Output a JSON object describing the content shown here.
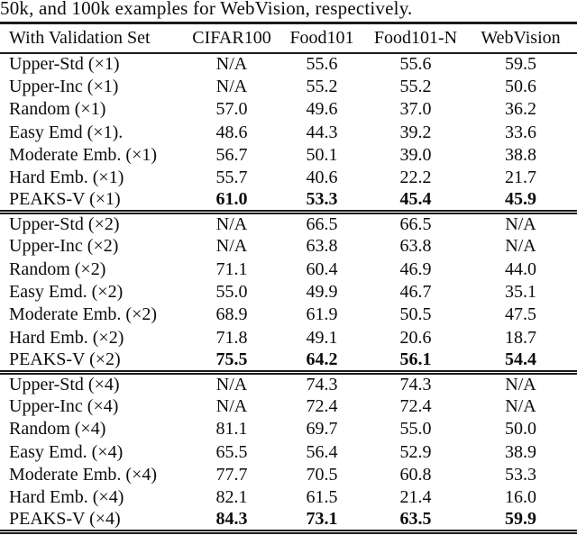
{
  "caption": "50k, and 100k examples for WebVision, respectively.",
  "table": {
    "columns": [
      "With Validation Set",
      "CIFAR100",
      "Food101",
      "Food101-N",
      "WebVision"
    ],
    "sections": [
      {
        "rows": [
          {
            "label": "Upper-Std (×1)",
            "values": [
              "N/A",
              "55.6",
              "55.6",
              "59.5"
            ],
            "bold": false
          },
          {
            "label": "Upper-Inc (×1)",
            "values": [
              "N/A",
              "55.2",
              "55.2",
              "50.6"
            ],
            "bold": false
          },
          {
            "label": "Random (×1)",
            "values": [
              "57.0",
              "49.6",
              "37.0",
              "36.2"
            ],
            "bold": false
          },
          {
            "label": "Easy Emd (×1).",
            "values": [
              "48.6",
              "44.3",
              "39.2",
              "33.6"
            ],
            "bold": false
          },
          {
            "label": "Moderate Emb. (×1)",
            "values": [
              "56.7",
              "50.1",
              "39.0",
              "38.8"
            ],
            "bold": false
          },
          {
            "label": "Hard Emb. (×1)",
            "values": [
              "55.7",
              "40.6",
              "22.2",
              "21.7"
            ],
            "bold": false
          },
          {
            "label": "PEAKS-V (×1)",
            "values": [
              "61.0",
              "53.3",
              "45.4",
              "45.9"
            ],
            "bold": true
          }
        ]
      },
      {
        "rows": [
          {
            "label": "Upper-Std (×2)",
            "values": [
              "N/A",
              "66.5",
              "66.5",
              "N/A"
            ],
            "bold": false
          },
          {
            "label": "Upper-Inc (×2)",
            "values": [
              "N/A",
              "63.8",
              "63.8",
              "N/A"
            ],
            "bold": false
          },
          {
            "label": "Random (×2)",
            "values": [
              "71.1",
              "60.4",
              "46.9",
              "44.0"
            ],
            "bold": false
          },
          {
            "label": "Easy Emd. (×2)",
            "values": [
              "55.0",
              "49.9",
              "46.7",
              "35.1"
            ],
            "bold": false
          },
          {
            "label": "Moderate Emb. (×2)",
            "values": [
              "68.9",
              "61.9",
              "50.5",
              "47.5"
            ],
            "bold": false
          },
          {
            "label": "Hard Emb. (×2)",
            "values": [
              "71.8",
              "49.1",
              "20.6",
              "18.7"
            ],
            "bold": false
          },
          {
            "label": "PEAKS-V (×2)",
            "values": [
              "75.5",
              "64.2",
              "56.1",
              "54.4"
            ],
            "bold": true
          }
        ]
      },
      {
        "rows": [
          {
            "label": "Upper-Std (×4)",
            "values": [
              "N/A",
              "74.3",
              "74.3",
              "N/A"
            ],
            "bold": false
          },
          {
            "label": "Upper-Inc (×4)",
            "values": [
              "N/A",
              "72.4",
              "72.4",
              "N/A"
            ],
            "bold": false
          },
          {
            "label": "Random (×4)",
            "values": [
              "81.1",
              "69.7",
              "55.0",
              "50.0"
            ],
            "bold": false
          },
          {
            "label": "Easy Emd. (×4)",
            "values": [
              "65.5",
              "56.4",
              "52.9",
              "38.9"
            ],
            "bold": false
          },
          {
            "label": "Moderate Emb. (×4)",
            "values": [
              "77.7",
              "70.5",
              "60.8",
              "53.3"
            ],
            "bold": false
          },
          {
            "label": "Hard Emb. (×4)",
            "values": [
              "82.1",
              "61.5",
              "21.4",
              "16.0"
            ],
            "bold": false
          },
          {
            "label": "PEAKS-V (×4)",
            "values": [
              "84.3",
              "73.1",
              "63.5",
              "59.9"
            ],
            "bold": true
          }
        ]
      }
    ]
  }
}
